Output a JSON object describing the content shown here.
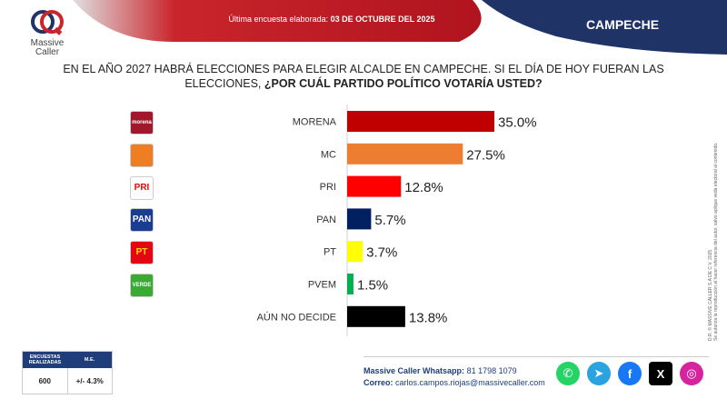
{
  "header": {
    "survey_label": "Última encuesta elaborada:",
    "survey_date": "03 DE OCTUBRE DEL 2025",
    "region": "CAMPECHE"
  },
  "logo": {
    "line1": "Massive",
    "line2": "Caller"
  },
  "question": {
    "line1": "EN EL AÑO 2027 HABRÁ ELECCIONES PARA ELEGIR ALCALDE EN CAMPECHE. SI EL DÍA DE HOY FUERAN LAS",
    "line2_plain": "ELECCIONES,",
    "line2_bold": "¿POR CUÁL PARTIDO POLÍTICO  VOTARÍA USTED?"
  },
  "parties": [
    {
      "icon": "morena-logo",
      "text": "morena",
      "bg": "#a0182c",
      "fg": "#ffffff"
    },
    {
      "icon": "mc-logo",
      "text": "",
      "bg": "#ef7d22",
      "fg": "#ffffff"
    },
    {
      "icon": "pri-logo",
      "text": "PRI",
      "bg": "#ffffff",
      "fg": "#e30613"
    },
    {
      "icon": "pan-logo",
      "text": "PAN",
      "bg": "#1b3d8f",
      "fg": "#ffffff"
    },
    {
      "icon": "pt-logo",
      "text": "PT",
      "bg": "#e30613",
      "fg": "#ffde00"
    },
    {
      "icon": "pvem-logo",
      "text": "VERDE",
      "bg": "#3aaa35",
      "fg": "#ffffff"
    }
  ],
  "chart_data": {
    "type": "bar",
    "orientation": "horizontal",
    "categories": [
      "MORENA",
      "MC",
      "PRI",
      "PAN",
      "PT",
      "PVEM",
      "AÚN NO DECIDE"
    ],
    "values": [
      35.0,
      27.5,
      12.8,
      5.7,
      3.7,
      1.5,
      13.8
    ],
    "value_labels": [
      "35.0%",
      "27.5%",
      "12.8%",
      "5.7%",
      "3.7%",
      "1.5%",
      "13.8%"
    ],
    "colors": [
      "#c00000",
      "#ed7d31",
      "#ff0000",
      "#002060",
      "#ffff00",
      "#00b050",
      "#000000"
    ],
    "unit": "%",
    "xlim": [
      0,
      35
    ],
    "grid": false,
    "legend": "none"
  },
  "side_note": {
    "line1": "D.R. © MASSIVE CALLER S.A DE C.V. 2025",
    "line2": "Se autoriza la reproducción al hacer referencia del autor, salvo aplique veda electoral al contenido."
  },
  "survey": {
    "col1_header": "ENCUESTAS REALIZADAS",
    "col2_header": "M.E.",
    "count": "600",
    "margin": "+/- 4.3%"
  },
  "contact": {
    "whatsapp_label": "Massive Caller Whatsapp:",
    "whatsapp_number": "81 1798 1079",
    "email_label": "Correo:",
    "email": "carlos.campos.riojas@massivecaller.com"
  },
  "socials": [
    {
      "icon": "whatsapp-icon",
      "glyph": "✆",
      "color": "#25d366"
    },
    {
      "icon": "telegram-icon",
      "glyph": "➤",
      "color": "#2aa3df"
    },
    {
      "icon": "facebook-icon",
      "glyph": "f",
      "color": "#1877f2"
    },
    {
      "icon": "x-icon",
      "glyph": "X",
      "color": "#000000"
    },
    {
      "icon": "instagram-icon",
      "glyph": "◎",
      "color": "#d6249f"
    }
  ]
}
